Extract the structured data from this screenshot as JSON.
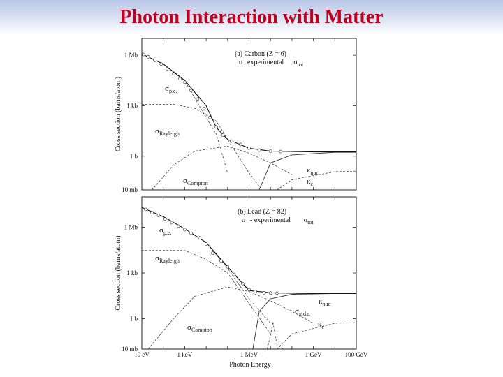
{
  "slide": {
    "title": "Photon Interaction with Matter"
  },
  "chart_data": [
    {
      "type": "line",
      "panel_label": "(a) Carbon (Z = 6)",
      "legend": {
        "marker": "o",
        "text": "experimental",
        "symbol": "σ",
        "symbol_sub": "tot"
      },
      "xlabel": "",
      "ylabel": "Cross section (barns/atom)",
      "x_scale": "log",
      "y_scale": "log",
      "xlim": [
        10,
        100000000000.0
      ],
      "ylim": [
        0.01,
        10000000.0
      ],
      "y_ticks": [
        {
          "value": 1000000.0,
          "label": "1 Mb"
        },
        {
          "value": 1000.0,
          "label": "1 kb"
        },
        {
          "value": 1,
          "label": "1 b"
        },
        {
          "value": 0.01,
          "label": "10 mb"
        }
      ],
      "series": [
        {
          "id": "sigma_pe",
          "sym": "σ",
          "sub": "p.e.",
          "style": "dashed",
          "x": [
            10,
            100,
            1000,
            10000,
            30000,
            100000
          ],
          "y": [
            1200000.0,
            300000.0,
            30000.0,
            200,
            20,
            0.1
          ]
        },
        {
          "id": "sigma_rayleigh",
          "sym": "σ",
          "sub": "Rayleigh",
          "style": "dashed",
          "x": [
            10,
            300,
            3000,
            30000,
            100000,
            1000000,
            4000000
          ],
          "y": [
            1200,
            1200,
            700,
            120,
            10,
            0.1,
            0.01
          ]
        },
        {
          "id": "sigma_compton",
          "sym": "σ",
          "sub": "Compton",
          "style": "dashed",
          "x": [
            30,
            300,
            3000,
            100000,
            1000000,
            10000000,
            100000000
          ],
          "y": [
            0.01,
            0.3,
            2,
            4,
            1.5,
            0.4,
            0.08
          ]
        },
        {
          "id": "kappa_nuc",
          "sym": "κ",
          "sub": "nuc",
          "style": "solid",
          "x": [
            3000000,
            10000000,
            100000000,
            10000000000,
            100000000000
          ],
          "y": [
            0.01,
            0.4,
            1.2,
            1.7,
            1.7
          ]
        },
        {
          "id": "kappa_e",
          "sym": "κ",
          "sub": "e",
          "style": "dashed",
          "x": [
            20000000,
            100000000,
            10000000000,
            100000000000
          ],
          "y": [
            0.01,
            0.04,
            0.12,
            0.13
          ]
        },
        {
          "id": "sigma_tot",
          "sym": "σ",
          "sub": "tot",
          "style": "solid",
          "x": [
            10,
            100,
            1000,
            10000,
            30000,
            100000,
            1000000,
            10000000,
            1000000000,
            100000000000
          ],
          "y": [
            1200000.0,
            300000.0,
            32000.0,
            1000,
            50,
            10,
            3,
            2,
            1.8,
            1.8
          ]
        }
      ],
      "experimental_points": {
        "x": [
          12,
          20,
          40,
          80,
          150,
          300,
          600,
          1000,
          2000,
          4000,
          8000,
          15000,
          30000,
          60000,
          150000,
          400000,
          1000000,
          3000000,
          10000000,
          30000000
        ],
        "y": [
          1100000.0,
          800000.0,
          500000.0,
          300000.0,
          160000.0,
          80000.0,
          40000.0,
          25000.0,
          8000,
          2500,
          700,
          200,
          55,
          18,
          8,
          5,
          3,
          2.3,
          2.0,
          1.9
        ]
      }
    },
    {
      "type": "line",
      "panel_label": "(b) Lead (Z = 82)",
      "legend": {
        "marker": "o",
        "text": "- experimental",
        "symbol": "σ",
        "symbol_sub": "tot"
      },
      "xlabel": "Photon Energy",
      "ylabel": "Cross section (barns/atom)",
      "x_scale": "log",
      "y_scale": "log",
      "xlim": [
        10,
        100000000000.0
      ],
      "ylim": [
        0.01,
        100000000.0
      ],
      "x_ticks": [
        {
          "value": 10,
          "label": "10 eV"
        },
        {
          "value": 1000,
          "label": "1 keV"
        },
        {
          "value": 1000000,
          "label": "1 MeV"
        },
        {
          "value": 1000000000,
          "label": "1 GeV"
        },
        {
          "value": 100000000000,
          "label": "100 GeV"
        }
      ],
      "y_ticks": [
        {
          "value": 1000000.0,
          "label": "1 Mb"
        },
        {
          "value": 1000.0,
          "label": "1 kb"
        },
        {
          "value": 1,
          "label": "1 b"
        },
        {
          "value": 0.01,
          "label": "10 mb"
        }
      ],
      "series": [
        {
          "id": "sigma_pe",
          "sym": "σ",
          "sub": "p.e.",
          "style": "dashed",
          "x": [
            10,
            100,
            1000,
            10000,
            100000,
            1000000,
            10000000
          ],
          "y": [
            20000000.0,
            5000000.0,
            800000.0,
            100000.0,
            2000,
            20,
            0.5
          ]
        },
        {
          "id": "sigma_rayleigh",
          "sym": "σ",
          "sub": "Rayleigh",
          "style": "dashed",
          "x": [
            10,
            1000,
            10000,
            100000,
            1000000,
            10000000
          ],
          "y": [
            30000.0,
            30000.0,
            8000,
            1000,
            10,
            0.1
          ]
        },
        {
          "id": "sigma_compton",
          "sym": "σ",
          "sub": "Compton",
          "style": "dashed",
          "x": [
            20,
            300,
            3000,
            100000,
            1000000,
            10000000,
            100000000,
            1000000000
          ],
          "y": [
            0.01,
            1,
            30,
            120,
            60,
            15,
            3,
            0.5
          ]
        },
        {
          "id": "kappa_nuc",
          "sym": "κ",
          "sub": "nuc",
          "style": "solid",
          "x": [
            1500000,
            3000000,
            10000000,
            100000000,
            10000000000,
            100000000000
          ],
          "y": [
            0.01,
            3,
            20,
            40,
            45,
            45
          ]
        },
        {
          "id": "sigma_gdr",
          "sym": "σ",
          "sub": "g.d.r.",
          "style": "dashed",
          "x": [
            7000000,
            10000000,
            13000000,
            16000000,
            20000000,
            40000000
          ],
          "y": [
            0.01,
            0.08,
            0.6,
            0.1,
            0.02,
            0.01
          ]
        },
        {
          "id": "kappa_e",
          "sym": "κ",
          "sub": "e",
          "style": "dashed",
          "x": [
            20000000,
            100000000,
            10000000000,
            100000000000
          ],
          "y": [
            0.01,
            0.1,
            0.5,
            0.55
          ]
        },
        {
          "id": "sigma_tot",
          "sym": "σ",
          "sub": "tot",
          "style": "solid",
          "x": [
            10,
            100,
            1000,
            10000,
            100000,
            1000000,
            10000000,
            1000000000,
            100000000000
          ],
          "y": [
            20000000.0,
            5000000.0,
            800000.0,
            100000.0,
            2500,
            70,
            50,
            45,
            45
          ]
        }
      ],
      "experimental_points": {
        "x": [
          15,
          30,
          60,
          120,
          250,
          500,
          1000,
          2000,
          5000,
          10000,
          20000,
          50000,
          100000,
          200000,
          500000,
          1000000,
          2000000,
          5000000,
          10000000,
          20000000
        ],
        "y": [
          15000000.0,
          9000000.0,
          6000000.0,
          3500000.0,
          2000000.0,
          1200000.0,
          700000.0,
          400000.0,
          200000.0,
          80000.0,
          20000.0,
          6000,
          2500,
          800,
          200,
          80,
          60,
          50,
          48,
          47
        ]
      }
    }
  ]
}
